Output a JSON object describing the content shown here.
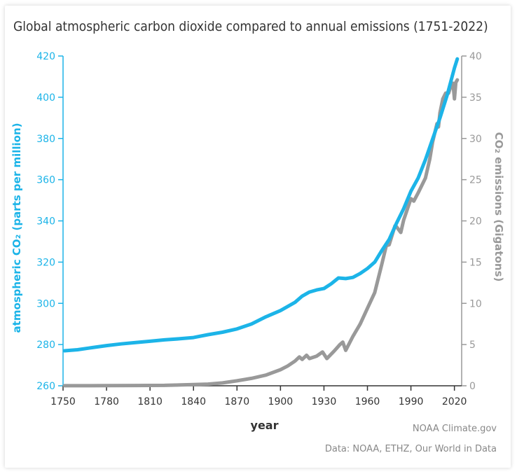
{
  "chart_data": {
    "type": "line",
    "title": "Global atmospheric carbon dioxide compared to annual emissions (1751-2022)",
    "xlabel": "year",
    "ylabel_left": "atmospheric CO₂ (parts per million)",
    "ylabel_right": "CO₂ emissions (Gigatons)",
    "xlim": [
      1750,
      2025
    ],
    "ylim_left": [
      260,
      420
    ],
    "ylim_right": [
      0,
      40
    ],
    "x_ticks": [
      1750,
      1780,
      1810,
      1840,
      1870,
      1900,
      1930,
      1960,
      1990,
      2020
    ],
    "y_ticks_left": [
      260,
      280,
      300,
      320,
      340,
      360,
      380,
      400,
      420
    ],
    "y_ticks_right": [
      0,
      5,
      10,
      15,
      20,
      25,
      30,
      35,
      40
    ],
    "grid": false,
    "credits": [
      "NOAA Climate.gov",
      "Data: NOAA, ETHZ, Our World in Data"
    ],
    "colors": {
      "co2_ppm": "#1cb4e8",
      "emissions": "#999999",
      "axis_left": "#1cb4e8",
      "axis_right": "#999999"
    },
    "series": [
      {
        "axis": "left",
        "points": [
          [
            1751,
            277
          ],
          [
            1760,
            277.5
          ],
          [
            1770,
            278.5
          ],
          [
            1780,
            279.5
          ],
          [
            1790,
            280.3
          ],
          [
            1800,
            281
          ],
          [
            1810,
            281.6
          ],
          [
            1820,
            282.3
          ],
          [
            1830,
            282.8
          ],
          [
            1840,
            283.4
          ],
          [
            1850,
            284.8
          ],
          [
            1860,
            286
          ],
          [
            1870,
            287.6
          ],
          [
            1880,
            290
          ],
          [
            1890,
            293.5
          ],
          [
            1900,
            296.5
          ],
          [
            1910,
            300.5
          ],
          [
            1915,
            303.5
          ],
          [
            1920,
            305.5
          ],
          [
            1925,
            306.5
          ],
          [
            1930,
            307.2
          ],
          [
            1935,
            309.5
          ],
          [
            1940,
            312.3
          ],
          [
            1945,
            312
          ],
          [
            1950,
            312.6
          ],
          [
            1955,
            314.5
          ],
          [
            1960,
            316.9
          ],
          [
            1965,
            320
          ],
          [
            1970,
            325.7
          ],
          [
            1975,
            331
          ],
          [
            1980,
            338.8
          ],
          [
            1985,
            345.9
          ],
          [
            1990,
            354.4
          ],
          [
            1995,
            360.8
          ],
          [
            2000,
            369.7
          ],
          [
            2005,
            379.8
          ],
          [
            2010,
            389.9
          ],
          [
            2015,
            401
          ],
          [
            2020,
            414.2
          ],
          [
            2022,
            418.6
          ]
        ]
      },
      {
        "axis": "right",
        "points": [
          [
            1751,
            0.01
          ],
          [
            1780,
            0.02
          ],
          [
            1800,
            0.03
          ],
          [
            1820,
            0.05
          ],
          [
            1840,
            0.15
          ],
          [
            1850,
            0.2
          ],
          [
            1860,
            0.35
          ],
          [
            1870,
            0.6
          ],
          [
            1880,
            0.9
          ],
          [
            1890,
            1.3
          ],
          [
            1900,
            1.95
          ],
          [
            1905,
            2.4
          ],
          [
            1910,
            3.0
          ],
          [
            1913,
            3.5
          ],
          [
            1915,
            3.2
          ],
          [
            1918,
            3.7
          ],
          [
            1920,
            3.3
          ],
          [
            1925,
            3.6
          ],
          [
            1929,
            4.1
          ],
          [
            1932,
            3.3
          ],
          [
            1937,
            4.2
          ],
          [
            1939,
            4.6
          ],
          [
            1941,
            5.0
          ],
          [
            1943,
            5.3
          ],
          [
            1945,
            4.3
          ],
          [
            1950,
            6.0
          ],
          [
            1955,
            7.5
          ],
          [
            1960,
            9.4
          ],
          [
            1965,
            11.3
          ],
          [
            1970,
            14.8
          ],
          [
            1973,
            17.0
          ],
          [
            1975,
            17.1
          ],
          [
            1979,
            19.4
          ],
          [
            1980,
            19.3
          ],
          [
            1983,
            18.6
          ],
          [
            1985,
            20.1
          ],
          [
            1990,
            22.7
          ],
          [
            1992,
            22.4
          ],
          [
            1995,
            23.4
          ],
          [
            2000,
            25.2
          ],
          [
            2003,
            27.5
          ],
          [
            2005,
            29.6
          ],
          [
            2008,
            31.8
          ],
          [
            2009,
            31.4
          ],
          [
            2010,
            33.1
          ],
          [
            2012,
            34.8
          ],
          [
            2014,
            35.5
          ],
          [
            2016,
            35.5
          ],
          [
            2018,
            36.6
          ],
          [
            2019,
            36.7
          ],
          [
            2020,
            34.8
          ],
          [
            2021,
            36.8
          ],
          [
            2022,
            37.1
          ]
        ]
      }
    ]
  }
}
